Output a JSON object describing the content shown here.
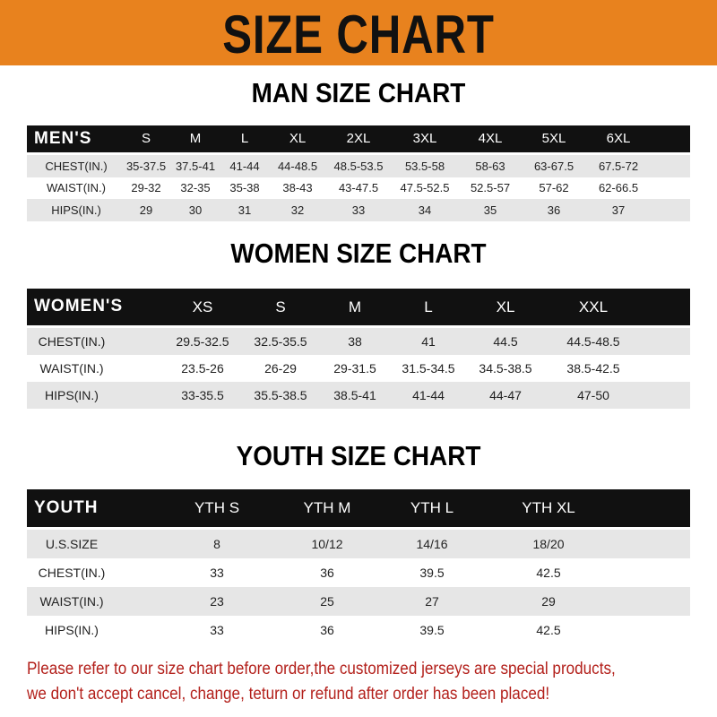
{
  "banner": {
    "title": "SIZE CHART",
    "color": "#e8821e"
  },
  "men": {
    "title": "MAN SIZE CHART",
    "header": "MEN'S",
    "sizes": [
      "S",
      "M",
      "L",
      "XL",
      "2XL",
      "3XL",
      "4XL",
      "5XL",
      "6XL"
    ],
    "rows": [
      {
        "label": "CHEST(IN.)",
        "values": [
          "35-37.5",
          "37.5-41",
          "41-44",
          "44-48.5",
          "48.5-53.5",
          "53.5-58",
          "58-63",
          "63-67.5",
          "67.5-72"
        ]
      },
      {
        "label": "WAIST(IN.)",
        "values": [
          "29-32",
          "32-35",
          "35-38",
          "38-43",
          "43-47.5",
          "47.5-52.5",
          "52.5-57",
          "57-62",
          "62-66.5"
        ]
      },
      {
        "label": "HIPS(IN.)",
        "values": [
          "29",
          "30",
          "31",
          "32",
          "33",
          "34",
          "35",
          "36",
          "37"
        ]
      }
    ]
  },
  "women": {
    "title": "WOMEN SIZE CHART",
    "header": "WOMEN'S",
    "sizes": [
      "XS",
      "S",
      "M",
      "L",
      "XL",
      "XXL"
    ],
    "rows": [
      {
        "label": "CHEST(IN.)",
        "values": [
          "29.5-32.5",
          "32.5-35.5",
          "38",
          "41",
          "44.5",
          "44.5-48.5"
        ]
      },
      {
        "label": "WAIST(IN.)",
        "values": [
          "23.5-26",
          "26-29",
          "29-31.5",
          "31.5-34.5",
          "34.5-38.5",
          "38.5-42.5"
        ]
      },
      {
        "label": "HIPS(IN.)",
        "values": [
          "33-35.5",
          "35.5-38.5",
          "38.5-41",
          "41-44",
          "44-47",
          "47-50"
        ]
      }
    ]
  },
  "youth": {
    "title": "YOUTH SIZE CHART",
    "header": "YOUTH",
    "sizes": [
      "YTH S",
      "YTH M",
      "YTH L",
      "YTH XL"
    ],
    "rows": [
      {
        "label": "U.S.SIZE",
        "values": [
          "8",
          "10/12",
          "14/16",
          "18/20"
        ]
      },
      {
        "label": "CHEST(IN.)",
        "values": [
          "33",
          "36",
          "39.5",
          "42.5"
        ]
      },
      {
        "label": "WAIST(IN.)",
        "values": [
          "23",
          "25",
          "27",
          "29"
        ]
      },
      {
        "label": "HIPS(IN.)",
        "values": [
          "33",
          "36",
          "39.5",
          "42.5"
        ]
      }
    ]
  },
  "footer": {
    "line1": "Please refer to our size chart before order,the customized jerseys are special products,",
    "line2": "we don't accept cancel, change, teturn or refund after order has been placed!",
    "color": "#b3201b"
  }
}
